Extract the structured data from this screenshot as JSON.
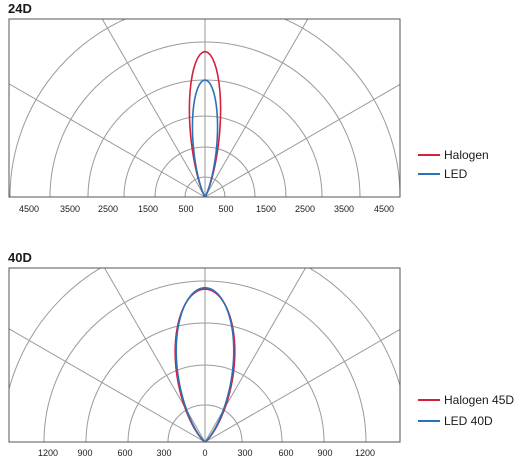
{
  "chart_data": [
    {
      "type": "polar",
      "title": "24D",
      "tick_labels": [
        "4500",
        "3500",
        "2500",
        "1500",
        "500",
        "500",
        "1500",
        "2500",
        "3500",
        "4500"
      ],
      "ring_values": [
        500,
        1500,
        2500,
        3500,
        4500,
        5500
      ],
      "angle_range_deg": [
        -90,
        90
      ],
      "spoke_step_deg": 30,
      "grid": true,
      "legend_position": "right",
      "series": [
        {
          "name": "Halogen",
          "color": "#d4213d",
          "peak": 4100,
          "half_angle_deg": 12
        },
        {
          "name": "LED",
          "color": "#2a72b8",
          "peak": 3300,
          "half_angle_deg": 12
        }
      ]
    },
    {
      "type": "polar",
      "title": "40D",
      "tick_labels": [
        "1200",
        "900",
        "600",
        "300",
        "0",
        "300",
        "600",
        "900",
        "1200"
      ],
      "ring_values": [
        300,
        600,
        900,
        1200,
        1500
      ],
      "angle_range_deg": [
        -90,
        90
      ],
      "spoke_step_deg": 30,
      "grid": true,
      "legend_position": "right",
      "series": [
        {
          "name": "Halogen 45D",
          "color": "#d4213d",
          "peak": 1130,
          "half_angle_deg": 22
        },
        {
          "name": "LED 40D",
          "color": "#2a72b8",
          "peak": 1140,
          "half_angle_deg": 21
        }
      ]
    }
  ]
}
